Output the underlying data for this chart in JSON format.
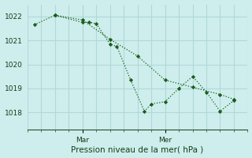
{
  "title": "Pression niveau de la mer( hPa )",
  "bg_color": "#ceeeed",
  "grid_color": "#b0d8d8",
  "line_color": "#1a5c1a",
  "marker_color": "#1a5c1a",
  "ylim": [
    1017.3,
    1022.5
  ],
  "yticks": [
    1018,
    1019,
    1020,
    1021,
    1022
  ],
  "xlim": [
    0,
    16
  ],
  "x_day_labels": [
    {
      "label": "Mar",
      "x": 4
    },
    {
      "label": "Mer",
      "x": 10
    }
  ],
  "vlines_x": [
    4,
    10
  ],
  "xtick_minor": [
    0,
    1,
    2,
    3,
    4,
    5,
    6,
    7,
    8,
    9,
    10,
    11,
    12,
    13,
    14,
    15,
    16
  ],
  "series1": [
    [
      0.5,
      1021.65
    ],
    [
      2,
      1022.05
    ],
    [
      4,
      1021.75
    ],
    [
      4.5,
      1021.75
    ],
    [
      5,
      1021.7
    ],
    [
      6,
      1020.85
    ],
    [
      6.5,
      1020.75
    ],
    [
      7.5,
      1019.35
    ],
    [
      8.5,
      1018.05
    ],
    [
      9,
      1018.35
    ],
    [
      10,
      1018.45
    ],
    [
      11,
      1019.0
    ],
    [
      12,
      1019.5
    ],
    [
      13,
      1018.85
    ],
    [
      14,
      1018.05
    ],
    [
      15,
      1018.5
    ]
  ],
  "series2": [
    [
      2,
      1022.05
    ],
    [
      4,
      1021.85
    ],
    [
      6,
      1021.05
    ],
    [
      8,
      1020.35
    ],
    [
      10,
      1019.35
    ],
    [
      12,
      1019.05
    ],
    [
      14,
      1018.75
    ],
    [
      15,
      1018.55
    ]
  ]
}
